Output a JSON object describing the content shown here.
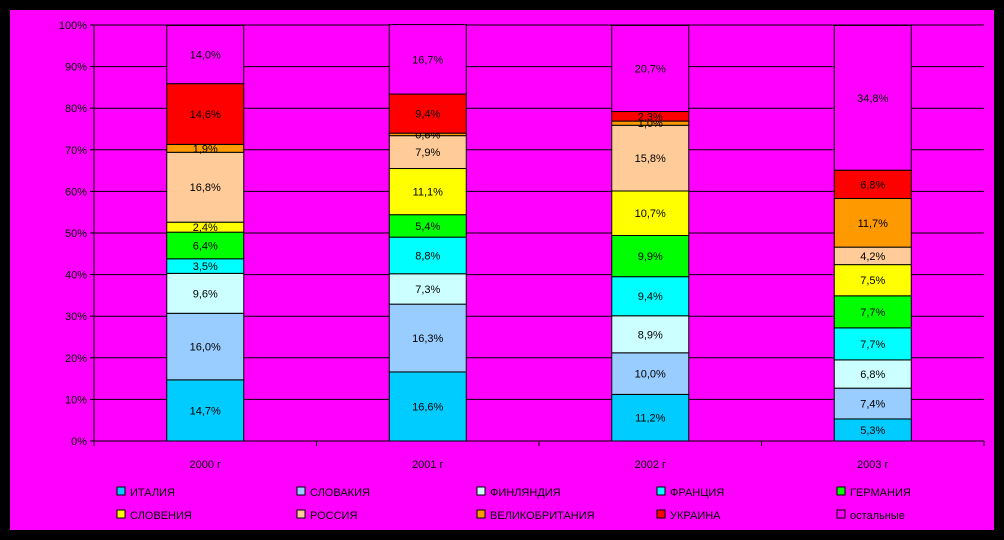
{
  "chart_data": {
    "type": "stacked-bar-100",
    "title": "",
    "xlabel": "",
    "ylabel": "",
    "ylim": [
      0,
      100
    ],
    "y_ticks": [
      "0%",
      "10%",
      "20%",
      "30%",
      "40%",
      "50%",
      "60%",
      "70%",
      "80%",
      "90%",
      "100%"
    ],
    "categories": [
      "2000 г",
      "2001 г",
      "2002 г",
      "2003 г"
    ],
    "series": [
      {
        "name": "ИТАЛИЯ",
        "color": "#00CCFF",
        "values": [
          14.7,
          16.6,
          11.2,
          5.3
        ],
        "labels": [
          "14,7%",
          "16,6%",
          "11,2%",
          "5,3%"
        ]
      },
      {
        "name": "СЛОВАКИЯ",
        "color": "#99CCFF",
        "values": [
          16.0,
          16.3,
          10.0,
          7.4
        ],
        "labels": [
          "16,0%",
          "16,3%",
          "10,0%",
          "7,4%"
        ]
      },
      {
        "name": "ФИНЛЯНДИЯ",
        "color": "#CCFFFF",
        "values": [
          9.6,
          7.3,
          8.9,
          6.8
        ],
        "labels": [
          "9,6%",
          "7,3%",
          "8,9%",
          "6,8%"
        ]
      },
      {
        "name": "ФРАНЦИЯ",
        "color": "#00FFFF",
        "values": [
          3.5,
          8.8,
          9.4,
          7.7
        ],
        "labels": [
          "3,5%",
          "8,8%",
          "9,4%",
          "7,7%"
        ]
      },
      {
        "name": "ГЕРМАНИЯ",
        "color": "#00FF00",
        "values": [
          6.4,
          5.4,
          9.9,
          7.7
        ],
        "labels": [
          "6,4%",
          "5,4%",
          "9,9%",
          "7,7%"
        ]
      },
      {
        "name": "СЛОВЕНИЯ",
        "color": "#FFFF00",
        "values": [
          2.4,
          11.1,
          10.7,
          7.5
        ],
        "labels": [
          "2,4%",
          "11,1%",
          "10,7%",
          "7,5%"
        ]
      },
      {
        "name": "РОССИЯ",
        "color": "#FFCC99",
        "values": [
          16.8,
          7.9,
          15.8,
          4.2
        ],
        "labels": [
          "16,8%",
          "7,9%",
          "15,8%",
          "4,2%"
        ]
      },
      {
        "name": "ВЕЛИКОБРИТАНИЯ",
        "color": "#FF9900",
        "values": [
          1.9,
          0.6,
          1.0,
          11.7
        ],
        "labels": [
          "1,9%",
          "0,6%",
          "1,0%",
          "11,7%"
        ]
      },
      {
        "name": "УКРАИНА",
        "color": "#FF0000",
        "values": [
          14.6,
          9.4,
          2.3,
          6.8
        ],
        "labels": [
          "14,6%",
          "9,4%",
          "2,3%",
          "6,8%"
        ]
      },
      {
        "name": "остальные",
        "color": "#FF00FF",
        "values": [
          14.0,
          16.7,
          20.7,
          34.8
        ],
        "labels": [
          "14,0%",
          "16,7%",
          "20,7%",
          "34,8%"
        ]
      }
    ],
    "grid": true,
    "legend_position": "bottom"
  }
}
